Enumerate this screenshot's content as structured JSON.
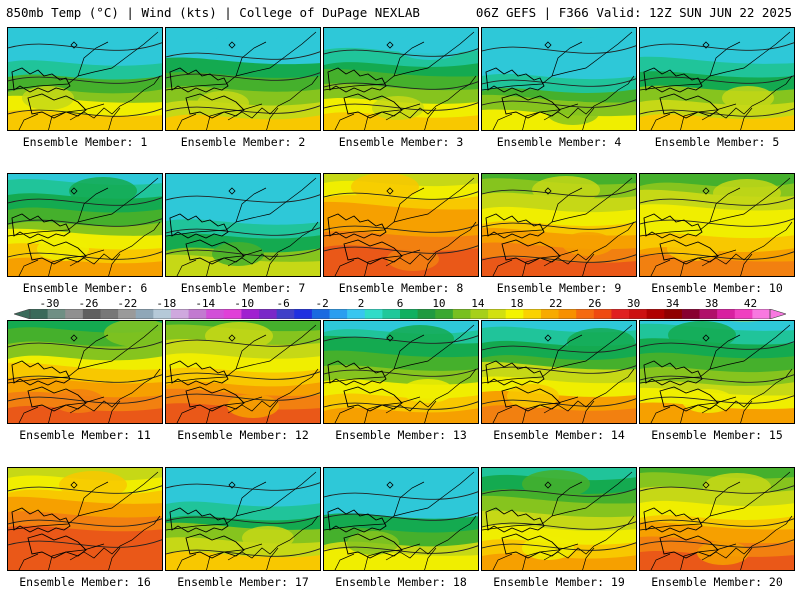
{
  "header": {
    "left": "850mb Temp (°C) | Wind (kts) | College of DuPage NEXLAB",
    "right": "06Z GEFS | F366 Valid: 12Z SUN JUN 22 2025"
  },
  "colorbar": {
    "tick_labels": [
      "-30",
      "-26",
      "-22",
      "-18",
      "-14",
      "-10",
      "-6",
      "-2",
      "2",
      "6",
      "10",
      "14",
      "18",
      "22",
      "26",
      "30",
      "34",
      "38",
      "42"
    ],
    "range": [
      -32,
      44
    ],
    "step": 2,
    "colors": [
      "#3a6a5a",
      "#6f8f84",
      "#909090",
      "#606060",
      "#787878",
      "#9a9a9a",
      "#8fa7b8",
      "#b5c9d8",
      "#cfa8de",
      "#c27ad0",
      "#d24fd8",
      "#e040d8",
      "#a020d0",
      "#7a28c8",
      "#4040c8",
      "#2030e0",
      "#1a6ae0",
      "#2a9ef0",
      "#38c6f0",
      "#30dcc8",
      "#20c89a",
      "#10b060",
      "#209a40",
      "#3aa830",
      "#78c020",
      "#a6d01a",
      "#d2e010",
      "#f4f400",
      "#fad200",
      "#f7aa00",
      "#f79000",
      "#f56a10",
      "#ef4a10",
      "#e02020",
      "#cc1010",
      "#b00000",
      "#900000",
      "#880030",
      "#b0106a",
      "#d820a0",
      "#f040c0",
      "#f878e0"
    ]
  },
  "members": [
    {
      "label": "Ensemble Member: 1",
      "warmth": 0.35,
      "cool_north": 0.85
    },
    {
      "label": "Ensemble Member: 2",
      "warmth": 0.3,
      "cool_north": 0.55
    },
    {
      "label": "Ensemble Member: 3",
      "warmth": 0.35,
      "cool_north": 0.65
    },
    {
      "label": "Ensemble Member: 4",
      "warmth": 0.2,
      "cool_north": 0.8
    },
    {
      "label": "Ensemble Member: 5",
      "warmth": 0.3,
      "cool_north": 0.9
    },
    {
      "label": "Ensemble Member: 6",
      "warmth": 0.45,
      "cool_north": 0.55
    },
    {
      "label": "Ensemble Member: 7",
      "warmth": 0.15,
      "cool_north": 0.7
    },
    {
      "label": "Ensemble Member: 8",
      "warmth": 0.75,
      "cool_north": 0.1
    },
    {
      "label": "Ensemble Member: 9",
      "warmth": 0.6,
      "cool_north": 0.2
    },
    {
      "label": "Ensemble Member: 10",
      "warmth": 0.55,
      "cool_north": 0.1
    },
    {
      "label": "Ensemble Member: 11",
      "warmth": 0.7,
      "cool_north": 0.55
    },
    {
      "label": "Ensemble Member: 12",
      "warmth": 0.6,
      "cool_north": 0.15
    },
    {
      "label": "Ensemble Member: 13",
      "warmth": 0.45,
      "cool_north": 0.6
    },
    {
      "label": "Ensemble Member: 14",
      "warmth": 0.55,
      "cool_north": 0.8
    },
    {
      "label": "Ensemble Member: 15",
      "warmth": 0.4,
      "cool_north": 0.45
    },
    {
      "label": "Ensemble Member: 16",
      "warmth": 0.8,
      "cool_north": 0.15
    },
    {
      "label": "Ensemble Member: 17",
      "warmth": 0.3,
      "cool_north": 0.8
    },
    {
      "label": "Ensemble Member: 18",
      "warmth": 0.25,
      "cool_north": 0.9
    },
    {
      "label": "Ensemble Member: 19",
      "warmth": 0.45,
      "cool_north": 0.25
    },
    {
      "label": "Ensemble Member: 20",
      "warmth": 0.6,
      "cool_north": 0.15
    }
  ]
}
